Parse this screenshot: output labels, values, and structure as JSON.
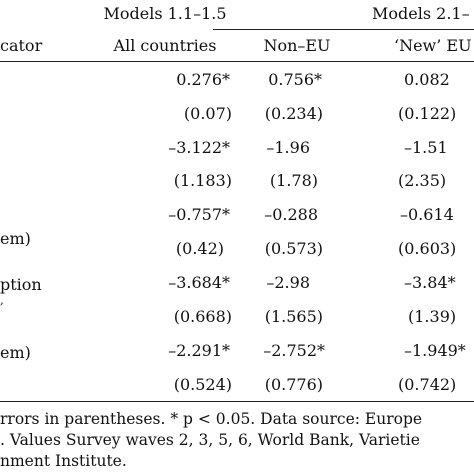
{
  "header": {
    "group1": "Models 1.1–1.5",
    "group2": "Models 2.1–",
    "label_col": "cator",
    "col1": "All countries",
    "col2": "Non–EU",
    "col3": "‘New’ EU"
  },
  "rows": [
    {
      "label": "",
      "v1": "0.276*",
      "v2": "0.756*",
      "v3": "0.082"
    },
    {
      "label": "",
      "v1": "(0.07)",
      "v2": "(0.234)",
      "v3": "(0.122)"
    },
    {
      "label": "",
      "v1": "–3.122*",
      "v2": "–1.96",
      "v3": "–1.51"
    },
    {
      "label": "",
      "v1": "(1.183)",
      "v2": "(1.78)",
      "v3": "(2.35)"
    },
    {
      "label": "",
      "v1": "–0.757*",
      "v2": "–0.288",
      "v3": "–0.614"
    },
    {
      "label": "em)",
      "v1": "(0.42)",
      "v2": "(0.573)",
      "v3": "(0.603)"
    },
    {
      "label": "ption",
      "v1": "–3.684*",
      "v2": "–2.98",
      "v3": "–3.84*"
    },
    {
      "label": "",
      "v1": "(0.668)",
      "v2": "(1.565)",
      "v3": "(1.39)"
    },
    {
      "label": "em)",
      "v1": "–2.291*",
      "v2": "–2.752*",
      "v3": "–1.949*"
    },
    {
      "label": "",
      "v1": "(0.524)",
      "v2": "(0.776)",
      "v3": "(0.742)"
    }
  ],
  "footnote": [
    "rrors in parentheses. * p < 0.05. Data source: Europe",
    ". Values Survey waves 2, 3, 5, 6, World Bank, Varietie",
    "nment Institute."
  ]
}
